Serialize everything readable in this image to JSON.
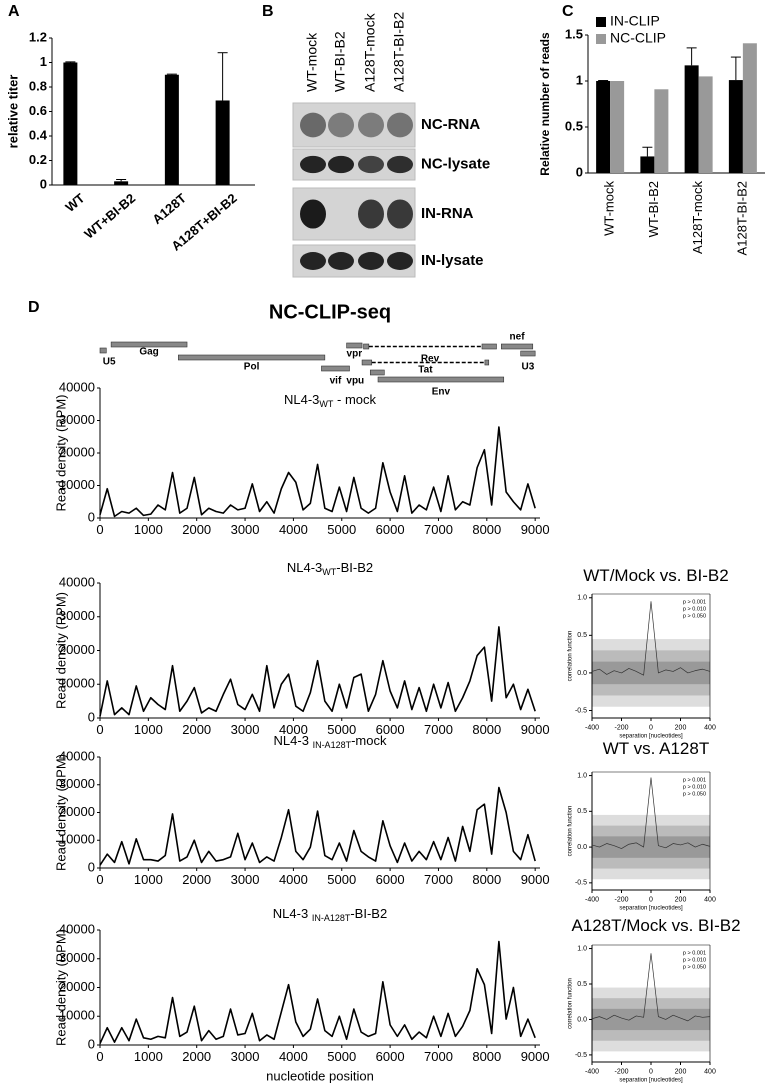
{
  "panel_labels": [
    "A",
    "B",
    "C",
    "D"
  ],
  "figure_title": "NC-CLIP-seq",
  "gel": {
    "lanes": [
      "WT-mock",
      "WT-BI-B2",
      "A128T-mock",
      "A128T-BI-B2"
    ],
    "rows": [
      "NC-RNA",
      "NC-lysate",
      "IN-RNA",
      "IN-lysate"
    ]
  },
  "genome_map": {
    "genes": [
      {
        "label": "U5",
        "segments": [
          [
            0,
            130
          ]
        ]
      },
      {
        "label": "Gag",
        "segments": [
          [
            230,
            1800
          ]
        ]
      },
      {
        "label": "Pol",
        "segments": [
          [
            1620,
            4650
          ]
        ]
      },
      {
        "label": "vif",
        "segments": [
          [
            4580,
            5160
          ]
        ]
      },
      {
        "label": "vpr",
        "segments": [
          [
            5100,
            5420
          ]
        ]
      },
      {
        "label": "vpu",
        "segments": [
          [
            5590,
            5880
          ]
        ]
      },
      {
        "label": "Rev",
        "segments": [
          [
            5450,
            5560
          ],
          [
            7900,
            8200
          ]
        ]
      },
      {
        "label": "Tat",
        "segments": [
          [
            5420,
            5620
          ],
          [
            7960,
            8040
          ]
        ]
      },
      {
        "label": "Env",
        "segments": [
          [
            5750,
            8350
          ]
        ]
      },
      {
        "label": "nef",
        "segments": [
          [
            8300,
            8950
          ]
        ]
      },
      {
        "label": "U3",
        "segments": [
          [
            8700,
            9000
          ]
        ]
      }
    ]
  },
  "chart_data": [
    {
      "type": "bar",
      "ylabel": "relative titer",
      "categories": [
        "WT",
        "WT+BI-B2",
        "A128T",
        "A128T+BI-B2"
      ],
      "values": [
        1,
        0.03,
        0.9,
        0.69
      ],
      "errors": [
        0.005,
        0.015,
        0.005,
        0.39
      ],
      "color": "#000000",
      "ylim": [
        0,
        1.2
      ],
      "yticks": [
        0,
        0.2,
        0.4,
        0.6,
        0.8,
        1,
        1.2
      ]
    },
    {
      "type": "bar",
      "ylabel": "Relative number of reads",
      "categories": [
        "WT-mock",
        "WT-BI-B2",
        "A128T-mock",
        "A128T-BI-B2"
      ],
      "series": [
        {
          "name": "IN-CLIP",
          "color": "#000000",
          "values": [
            1,
            0.18,
            1.17,
            1.01
          ],
          "errors": [
            0.005,
            0.1,
            0.19,
            0.25
          ]
        },
        {
          "name": "NC-CLIP",
          "color": "#999999",
          "values": [
            1,
            0.91,
            1.05,
            1.41
          ]
        }
      ],
      "ylim": [
        0,
        1.5
      ],
      "yticks": [
        0,
        0.5,
        1,
        1.5
      ],
      "legend": "top-left"
    },
    {
      "type": "line",
      "title": [
        "NL4-3",
        "WT",
        " - mock"
      ],
      "ylabel": "Read density (RPM)",
      "color": "#000000",
      "xlim": [
        0,
        9100
      ],
      "xticks": [
        0,
        1000,
        2000,
        3000,
        4000,
        5000,
        6000,
        7000,
        8000,
        9000
      ],
      "ylim": [
        0,
        40000
      ],
      "yticks": [
        0,
        10000,
        20000,
        30000,
        40000
      ],
      "x": [
        0,
        150,
        300,
        450,
        600,
        750,
        900,
        1050,
        1200,
        1350,
        1500,
        1650,
        1800,
        1950,
        2100,
        2250,
        2400,
        2550,
        2700,
        2850,
        3000,
        3150,
        3300,
        3450,
        3600,
        3750,
        3900,
        4050,
        4200,
        4350,
        4500,
        4650,
        4800,
        4950,
        5100,
        5250,
        5400,
        5550,
        5700,
        5850,
        6000,
        6150,
        6300,
        6450,
        6600,
        6750,
        6900,
        7050,
        7200,
        7350,
        7500,
        7650,
        7800,
        7950,
        8100,
        8250,
        8400,
        8550,
        8700,
        8850,
        9000
      ],
      "values": [
        1000,
        9000,
        500,
        2000,
        1500,
        3000,
        800,
        1200,
        4000,
        2500,
        14000,
        1500,
        3000,
        12500,
        1000,
        3000,
        2000,
        1500,
        4000,
        2500,
        3000,
        10500,
        2000,
        5000,
        1500,
        9000,
        14000,
        11000,
        2500,
        4500,
        16500,
        3000,
        2000,
        9500,
        2000,
        12500,
        3000,
        1500,
        3000,
        17000,
        8000,
        2000,
        13000,
        1500,
        4000,
        2500,
        9500,
        2000,
        13000,
        2500,
        5000,
        4000,
        15500,
        21000,
        4000,
        28000,
        8000,
        5000,
        2500,
        10500,
        3000
      ]
    },
    {
      "type": "line",
      "title": [
        "NL4-3",
        "WT",
        "-BI-B2"
      ],
      "ylabel": "Read density (RPM)",
      "color": "#000000",
      "xlim": [
        0,
        9100
      ],
      "xticks": [
        0,
        1000,
        2000,
        3000,
        4000,
        5000,
        6000,
        7000,
        8000,
        9000
      ],
      "ylim": [
        0,
        40000
      ],
      "yticks": [
        0,
        10000,
        20000,
        30000,
        40000
      ],
      "x": [
        0,
        150,
        300,
        450,
        600,
        750,
        900,
        1050,
        1200,
        1350,
        1500,
        1650,
        1800,
        1950,
        2100,
        2250,
        2400,
        2550,
        2700,
        2850,
        3000,
        3150,
        3300,
        3450,
        3600,
        3750,
        3900,
        4050,
        4200,
        4350,
        4500,
        4650,
        4800,
        4950,
        5100,
        5250,
        5400,
        5550,
        5700,
        5850,
        6000,
        6150,
        6300,
        6450,
        6600,
        6750,
        6900,
        7050,
        7200,
        7350,
        7500,
        7650,
        7800,
        7950,
        8100,
        8250,
        8400,
        8550,
        8700,
        8850,
        9000
      ],
      "values": [
        500,
        11000,
        1000,
        3000,
        1000,
        9500,
        2000,
        6000,
        4000,
        2500,
        15500,
        2000,
        5000,
        9000,
        1500,
        3000,
        2000,
        7000,
        11500,
        4000,
        2500,
        7000,
        2000,
        15500,
        3000,
        10000,
        13000,
        3500,
        2000,
        7500,
        17000,
        5000,
        2000,
        10000,
        3000,
        12000,
        13000,
        2000,
        7000,
        17000,
        8000,
        3000,
        11000,
        2500,
        9000,
        2000,
        10000,
        3000,
        10500,
        2000,
        6000,
        11000,
        18500,
        21000,
        5000,
        27000,
        6000,
        10000,
        2500,
        8500,
        2000
      ]
    },
    {
      "type": "line",
      "title": [
        "NL4-3 ",
        "IN-A128T",
        "-mock"
      ],
      "ylabel": "Read density (RPM)",
      "color": "#000000",
      "xlim": [
        0,
        9100
      ],
      "xticks": [
        0,
        1000,
        2000,
        3000,
        4000,
        5000,
        6000,
        7000,
        8000,
        9000
      ],
      "ylim": [
        0,
        40000
      ],
      "yticks": [
        0,
        10000,
        20000,
        30000,
        40000
      ],
      "x": [
        0,
        150,
        300,
        450,
        600,
        750,
        900,
        1050,
        1200,
        1350,
        1500,
        1650,
        1800,
        1950,
        2100,
        2250,
        2400,
        2550,
        2700,
        2850,
        3000,
        3150,
        3300,
        3450,
        3600,
        3750,
        3900,
        4050,
        4200,
        4350,
        4500,
        4650,
        4800,
        4950,
        5100,
        5250,
        5400,
        5550,
        5700,
        5850,
        6000,
        6150,
        6300,
        6450,
        6600,
        6750,
        6900,
        7050,
        7200,
        7350,
        7500,
        7650,
        7800,
        7950,
        8100,
        8250,
        8400,
        8550,
        8700,
        8850,
        9000
      ],
      "values": [
        1000,
        5000,
        2000,
        9500,
        1500,
        10500,
        3000,
        3000,
        2500,
        4500,
        19500,
        2500,
        4000,
        10000,
        2000,
        6000,
        2500,
        3000,
        4000,
        12500,
        3000,
        9000,
        2000,
        4000,
        2500,
        11000,
        21000,
        6000,
        3000,
        7500,
        20500,
        4500,
        3000,
        9000,
        2500,
        13500,
        6000,
        4000,
        2500,
        17000,
        8000,
        2000,
        9000,
        2500,
        6000,
        3000,
        9500,
        3000,
        11000,
        2500,
        15000,
        6000,
        21000,
        23000,
        5000,
        29000,
        20000,
        6000,
        3000,
        12000,
        2500
      ]
    },
    {
      "type": "line",
      "title": [
        "NL4-3 ",
        "IN-A128T",
        "-BI-B2"
      ],
      "ylabel": "Read density (RPM)",
      "xlabel": "nucleotide position",
      "color": "#000000",
      "xlim": [
        0,
        9100
      ],
      "xticks": [
        0,
        1000,
        2000,
        3000,
        4000,
        5000,
        6000,
        7000,
        8000,
        9000
      ],
      "ylim": [
        0,
        40000
      ],
      "yticks": [
        0,
        10000,
        20000,
        30000,
        40000
      ],
      "x": [
        0,
        150,
        300,
        450,
        600,
        750,
        900,
        1050,
        1200,
        1350,
        1500,
        1650,
        1800,
        1950,
        2100,
        2250,
        2400,
        2550,
        2700,
        2850,
        3000,
        3150,
        3300,
        3450,
        3600,
        3750,
        3900,
        4050,
        4200,
        4350,
        4500,
        4650,
        4800,
        4950,
        5100,
        5250,
        5400,
        5550,
        5700,
        5850,
        6000,
        6150,
        6300,
        6450,
        6600,
        6750,
        6900,
        7050,
        7200,
        7350,
        7500,
        7650,
        7800,
        7950,
        8100,
        8250,
        8400,
        8550,
        8700,
        8850,
        9000
      ],
      "values": [
        500,
        6000,
        1000,
        6000,
        1500,
        9000,
        2500,
        2000,
        3000,
        2500,
        16500,
        3000,
        4500,
        13500,
        1500,
        5000,
        2000,
        3000,
        12500,
        3500,
        4000,
        11000,
        1500,
        3500,
        2000,
        11500,
        21000,
        8000,
        3000,
        5500,
        16000,
        5000,
        3000,
        10000,
        2000,
        12500,
        4500,
        3000,
        4000,
        22000,
        7000,
        3000,
        7000,
        2000,
        4500,
        2500,
        10000,
        3000,
        11000,
        3000,
        6500,
        12000,
        26500,
        21000,
        4000,
        36000,
        9000,
        20000,
        3000,
        9000,
        2500
      ]
    },
    {
      "type": "line",
      "title": [
        "WT/Mock vs. BI-B2"
      ],
      "ylabel": "correlation function",
      "xlabel": "separation [nucleotides]",
      "color": "#333333",
      "xlim": [
        -400,
        400
      ],
      "xticks": [
        -400,
        -200,
        0,
        200,
        400
      ],
      "ylim": [
        -0.6,
        1.05
      ],
      "yticks": [
        -0.5,
        {
          "value": 0,
          "label": "0.0"
        },
        0.5,
        {
          "value": 1,
          "label": "1.0"
        }
      ],
      "bands": [
        {
          "name": "p > 0.001",
          "halfwidth": 0.45,
          "color": "#dddddd"
        },
        {
          "name": "p > 0.010",
          "halfwidth": 0.3,
          "color": "#bbbbbb"
        },
        {
          "name": "p > 0.050",
          "halfwidth": 0.15,
          "color": "#999999"
        }
      ],
      "x": [
        -400,
        -350,
        -300,
        -250,
        -200,
        -150,
        -100,
        -50,
        0,
        50,
        100,
        150,
        200,
        250,
        300,
        350,
        400
      ],
      "values": [
        0.02,
        0.05,
        -0.02,
        0.03,
        0.0,
        0.06,
        0.02,
        -0.03,
        0.95,
        0.0,
        0.04,
        0.02,
        0.07,
        0.0,
        0.03,
        0.05,
        0.02
      ]
    },
    {
      "type": "line",
      "title": [
        "WT vs. A128T"
      ],
      "ylabel": "correlation function",
      "xlabel": "separation [nucleotides]",
      "color": "#333333",
      "xlim": [
        -400,
        400
      ],
      "xticks": [
        -400,
        -200,
        0,
        200,
        400
      ],
      "ylim": [
        -0.6,
        1.05
      ],
      "yticks": [
        -0.5,
        {
          "value": 0,
          "label": "0.0"
        },
        0.5,
        {
          "value": 1,
          "label": "1.0"
        }
      ],
      "bands": [
        {
          "name": "p > 0.001",
          "halfwidth": 0.45,
          "color": "#dddddd"
        },
        {
          "name": "p > 0.010",
          "halfwidth": 0.3,
          "color": "#bbbbbb"
        },
        {
          "name": "p > 0.050",
          "halfwidth": 0.15,
          "color": "#999999"
        }
      ],
      "x": [
        -400,
        -350,
        -300,
        -250,
        -200,
        -150,
        -100,
        -50,
        0,
        50,
        100,
        150,
        200,
        250,
        300,
        350,
        400
      ],
      "values": [
        0.03,
        0.0,
        0.05,
        0.02,
        -0.02,
        0.04,
        0.06,
        0.0,
        0.97,
        0.02,
        -0.01,
        0.05,
        0.03,
        0.06,
        0.0,
        0.04,
        0.01
      ]
    },
    {
      "type": "line",
      "title": [
        "A128T/Mock vs. BI-B2"
      ],
      "ylabel": "correlation function",
      "xlabel": "separation [nucleotides]",
      "color": "#333333",
      "xlim": [
        -400,
        400
      ],
      "xticks": [
        -400,
        -200,
        0,
        200,
        400
      ],
      "ylim": [
        -0.6,
        1.05
      ],
      "yticks": [
        -0.5,
        {
          "value": 0,
          "label": "0.0"
        },
        0.5,
        {
          "value": 1,
          "label": "1.0"
        }
      ],
      "bands": [
        {
          "name": "p > 0.001",
          "halfwidth": 0.45,
          "color": "#dddddd"
        },
        {
          "name": "p > 0.010",
          "halfwidth": 0.3,
          "color": "#bbbbbb"
        },
        {
          "name": "p > 0.050",
          "halfwidth": 0.15,
          "color": "#999999"
        }
      ],
      "x": [
        -400,
        -350,
        -300,
        -250,
        -200,
        -150,
        -100,
        -50,
        0,
        50,
        100,
        150,
        200,
        250,
        300,
        350,
        400
      ],
      "values": [
        0.01,
        0.04,
        0.0,
        0.06,
        0.02,
        -0.01,
        0.05,
        0.03,
        0.93,
        0.04,
        0.0,
        0.06,
        0.02,
        -0.02,
        0.05,
        0.03,
        0.04
      ]
    }
  ]
}
